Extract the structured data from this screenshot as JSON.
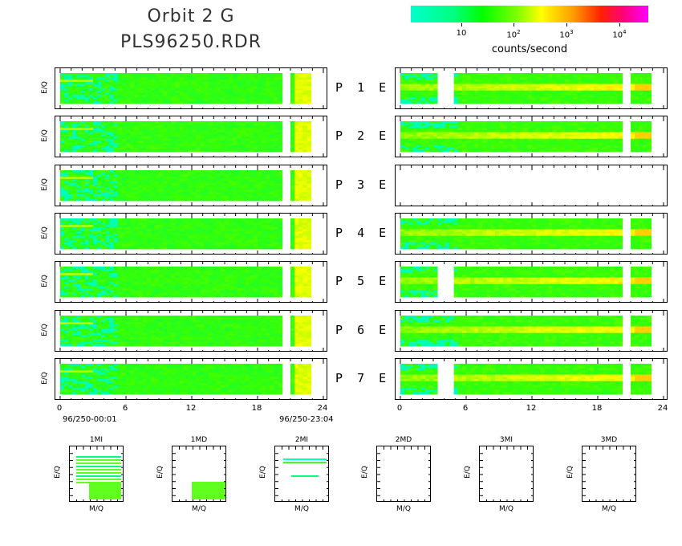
{
  "title": {
    "line1": "Orbit 2 G",
    "line2": "PLS96250.RDR"
  },
  "colorbar": {
    "labels": [
      "10",
      "10",
      "10",
      "10"
    ],
    "exponents": [
      "",
      "2",
      "3",
      "4"
    ],
    "units": "counts/second",
    "colors": [
      "#00ffcc",
      "#00ff00",
      "#ffff00",
      "#ff2000",
      "#ff00ff"
    ]
  },
  "axis": {
    "ylabel": "E/Q",
    "xticks": [
      "0",
      "6",
      "12",
      "18",
      "24"
    ],
    "start": "96/250-00:01",
    "end": "96/250-23:04"
  },
  "rows": [
    {
      "left": "P  1  E",
      "right_has_data": true
    },
    {
      "left": "P  2  E",
      "right_has_data": true
    },
    {
      "left": "P  3  E",
      "right_has_data": false
    },
    {
      "left": "P  4  E",
      "right_has_data": true
    },
    {
      "left": "P  5  E",
      "right_has_data": true
    },
    {
      "left": "P  6  E",
      "right_has_data": true
    },
    {
      "left": "P  7  E",
      "right_has_data": true
    }
  ],
  "small_panels": [
    {
      "title": "1MI",
      "xlabel": "M/Q",
      "ylabel": "E/Q"
    },
    {
      "title": "1MD",
      "xlabel": "M/Q",
      "ylabel": "E/Q"
    },
    {
      "title": "2MI",
      "xlabel": "M/Q",
      "ylabel": "E/Q"
    },
    {
      "title": "2MD",
      "xlabel": "M/Q",
      "ylabel": "E/Q"
    },
    {
      "title": "3MI",
      "xlabel": "M/Q",
      "ylabel": "E/Q"
    },
    {
      "title": "3MD",
      "xlabel": "M/Q",
      "ylabel": "E/Q"
    }
  ],
  "chart_data": {
    "type": "heatmap",
    "title": "Orbit 2 G PLS96250.RDR",
    "xlabel": "",
    "ylabel": "E/Q",
    "xlim": [
      0,
      24
    ],
    "xticks": [
      0,
      6,
      12,
      18,
      24
    ],
    "colorbar_label": "counts/second",
    "colorbar_scale": "log",
    "colorbar_ticks": [
      "10",
      "10^2",
      "10^3",
      "10^4"
    ]
  }
}
